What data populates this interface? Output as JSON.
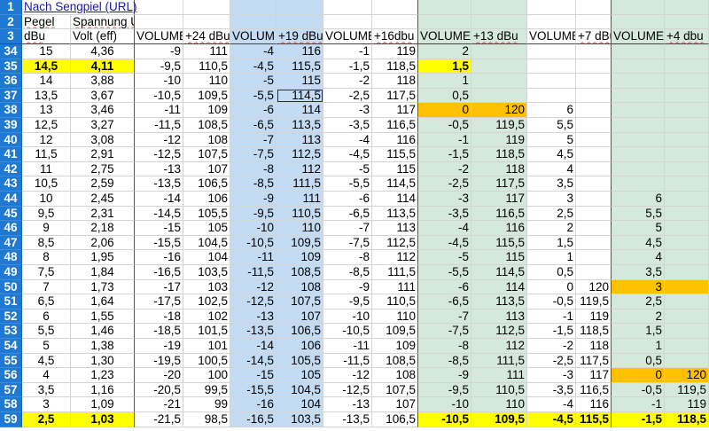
{
  "header_rows": [
    {
      "num": "1",
      "cells": [
        "Nach Sengpiel (URL)",
        "",
        "",
        "",
        "",
        "",
        "",
        "",
        "",
        "",
        "",
        "",
        "",
        ""
      ]
    },
    {
      "num": "2",
      "cells": [
        "Pegel",
        "Spannung U",
        "",
        "",
        "",
        "",
        "",
        "",
        "",
        "",
        "",
        "",
        "",
        ""
      ]
    },
    {
      "num": "3",
      "cells": [
        "dBu",
        "Volt (eff)",
        "VOLUME",
        "+24 dBu",
        "VOLUME",
        "+19 dBu",
        "VOLUME",
        "+16dbu",
        "VOLUME",
        "+13 dBu",
        "VOLUME",
        "+7 dBu",
        "VOLUME",
        "+4 dbu"
      ]
    }
  ],
  "rows": [
    {
      "num": "34",
      "cells": [
        "15",
        "4,36",
        "-9",
        "111",
        "-4",
        "116",
        "-1",
        "119",
        "2",
        "",
        "",
        "",
        "",
        ""
      ]
    },
    {
      "num": "35",
      "cells": [
        "14,5",
        "4,11",
        "-9,5",
        "110,5",
        "-4,5",
        "115,5",
        "-1,5",
        "118,5",
        "1,5",
        "",
        "",
        "",
        "",
        ""
      ]
    },
    {
      "num": "36",
      "cells": [
        "14",
        "3,88",
        "-10",
        "110",
        "-5",
        "115",
        "-2",
        "118",
        "1",
        "",
        "",
        "",
        "",
        ""
      ]
    },
    {
      "num": "37",
      "cells": [
        "13,5",
        "3,67",
        "-10,5",
        "109,5",
        "-5,5",
        "114,5",
        "-2,5",
        "117,5",
        "0,5",
        "",
        "",
        "",
        "",
        ""
      ]
    },
    {
      "num": "38",
      "cells": [
        "13",
        "3,46",
        "-11",
        "109",
        "-6",
        "114",
        "-3",
        "117",
        "0",
        "120",
        "6",
        "",
        "",
        ""
      ]
    },
    {
      "num": "39",
      "cells": [
        "12,5",
        "3,27",
        "-11,5",
        "108,5",
        "-6,5",
        "113,5",
        "-3,5",
        "116,5",
        "-0,5",
        "119,5",
        "5,5",
        "",
        "",
        ""
      ]
    },
    {
      "num": "40",
      "cells": [
        "12",
        "3,08",
        "-12",
        "108",
        "-7",
        "113",
        "-4",
        "116",
        "-1",
        "119",
        "5",
        "",
        "",
        ""
      ]
    },
    {
      "num": "41",
      "cells": [
        "11,5",
        "2,91",
        "-12,5",
        "107,5",
        "-7,5",
        "112,5",
        "-4,5",
        "115,5",
        "-1,5",
        "118,5",
        "4,5",
        "",
        "",
        ""
      ]
    },
    {
      "num": "42",
      "cells": [
        "11",
        "2,75",
        "-13",
        "107",
        "-8",
        "112",
        "-5",
        "115",
        "-2",
        "118",
        "4",
        "",
        "",
        ""
      ]
    },
    {
      "num": "43",
      "cells": [
        "10,5",
        "2,59",
        "-13,5",
        "106,5",
        "-8,5",
        "111,5",
        "-5,5",
        "114,5",
        "-2,5",
        "117,5",
        "3,5",
        "",
        "",
        ""
      ]
    },
    {
      "num": "44",
      "cells": [
        "10",
        "2,45",
        "-14",
        "106",
        "-9",
        "111",
        "-6",
        "114",
        "-3",
        "117",
        "3",
        "",
        "6",
        ""
      ]
    },
    {
      "num": "45",
      "cells": [
        "9,5",
        "2,31",
        "-14,5",
        "105,5",
        "-9,5",
        "110,5",
        "-6,5",
        "113,5",
        "-3,5",
        "116,5",
        "2,5",
        "",
        "5,5",
        ""
      ]
    },
    {
      "num": "46",
      "cells": [
        "9",
        "2,18",
        "-15",
        "105",
        "-10",
        "110",
        "-7",
        "113",
        "-4",
        "116",
        "2",
        "",
        "5",
        ""
      ]
    },
    {
      "num": "47",
      "cells": [
        "8,5",
        "2,06",
        "-15,5",
        "104,5",
        "-10,5",
        "109,5",
        "-7,5",
        "112,5",
        "-4,5",
        "115,5",
        "1,5",
        "",
        "4,5",
        ""
      ]
    },
    {
      "num": "48",
      "cells": [
        "8",
        "1,95",
        "-16",
        "104",
        "-11",
        "109",
        "-8",
        "112",
        "-5",
        "115",
        "1",
        "",
        "4",
        ""
      ]
    },
    {
      "num": "49",
      "cells": [
        "7,5",
        "1,84",
        "-16,5",
        "103,5",
        "-11,5",
        "108,5",
        "-8,5",
        "111,5",
        "-5,5",
        "114,5",
        "0,5",
        "",
        "3,5",
        ""
      ]
    },
    {
      "num": "50",
      "cells": [
        "7",
        "1,73",
        "-17",
        "103",
        "-12",
        "108",
        "-9",
        "111",
        "-6",
        "114",
        "0",
        "120",
        "3",
        ""
      ]
    },
    {
      "num": "51",
      "cells": [
        "6,5",
        "1,64",
        "-17,5",
        "102,5",
        "-12,5",
        "107,5",
        "-9,5",
        "110,5",
        "-6,5",
        "113,5",
        "-0,5",
        "119,5",
        "2,5",
        ""
      ]
    },
    {
      "num": "52",
      "cells": [
        "6",
        "1,55",
        "-18",
        "102",
        "-13",
        "107",
        "-10",
        "110",
        "-7",
        "113",
        "-1",
        "119",
        "2",
        ""
      ]
    },
    {
      "num": "53",
      "cells": [
        "5,5",
        "1,46",
        "-18,5",
        "101,5",
        "-13,5",
        "106,5",
        "-10,5",
        "109,5",
        "-7,5",
        "112,5",
        "-1,5",
        "118,5",
        "1,5",
        ""
      ]
    },
    {
      "num": "54",
      "cells": [
        "5",
        "1,38",
        "-19",
        "101",
        "-14",
        "106",
        "-11",
        "109",
        "-8",
        "112",
        "-2",
        "118",
        "1",
        ""
      ]
    },
    {
      "num": "55",
      "cells": [
        "4,5",
        "1,30",
        "-19,5",
        "100,5",
        "-14,5",
        "105,5",
        "-11,5",
        "108,5",
        "-8,5",
        "111,5",
        "-2,5",
        "117,5",
        "0,5",
        ""
      ]
    },
    {
      "num": "56",
      "cells": [
        "4",
        "1,23",
        "-20",
        "100",
        "-15",
        "105",
        "-12",
        "108",
        "-9",
        "111",
        "-3",
        "117",
        "0",
        "120"
      ]
    },
    {
      "num": "57",
      "cells": [
        "3,5",
        "1,16",
        "-20,5",
        "99,5",
        "-15,5",
        "104,5",
        "-12,5",
        "107,5",
        "-9,5",
        "110,5",
        "-3,5",
        "116,5",
        "-0,5",
        "119,5"
      ]
    },
    {
      "num": "58",
      "cells": [
        "3",
        "1,09",
        "-21",
        "99",
        "-16",
        "104",
        "-13",
        "107",
        "-10",
        "110",
        "-4",
        "116",
        "-1",
        "119"
      ]
    },
    {
      "num": "59",
      "cells": [
        "2,5",
        "1,03",
        "-21,5",
        "98,5",
        "-16,5",
        "103,5",
        "-13,5",
        "106,5",
        "-10,5",
        "109,5",
        "-4,5",
        "115,5",
        "-1,5",
        "118,5"
      ]
    }
  ],
  "colors": {
    "row_header": "#1f78d1",
    "selection": "#c3dcf3",
    "green": "#d4e8dc",
    "yellow": "#ffff00",
    "orange": "#ffc000"
  },
  "highlights": [
    {
      "row": "35",
      "cols": [
        0,
        1,
        8
      ],
      "color": "yellow",
      "bold": true
    },
    {
      "row": "59",
      "cols": [
        0,
        1,
        8,
        9,
        10,
        11,
        12,
        13
      ],
      "color": "yellow",
      "bold": true
    },
    {
      "row": "38",
      "cols": [
        8,
        9
      ],
      "color": "orange",
      "bold": false
    },
    {
      "row": "50",
      "cols": [
        12,
        13
      ],
      "color": "orange",
      "bold": false
    },
    {
      "row": "56",
      "cols": [
        12,
        13
      ],
      "color": "orange",
      "bold": false
    }
  ],
  "active_cell": {
    "row": "37",
    "col": 5
  }
}
